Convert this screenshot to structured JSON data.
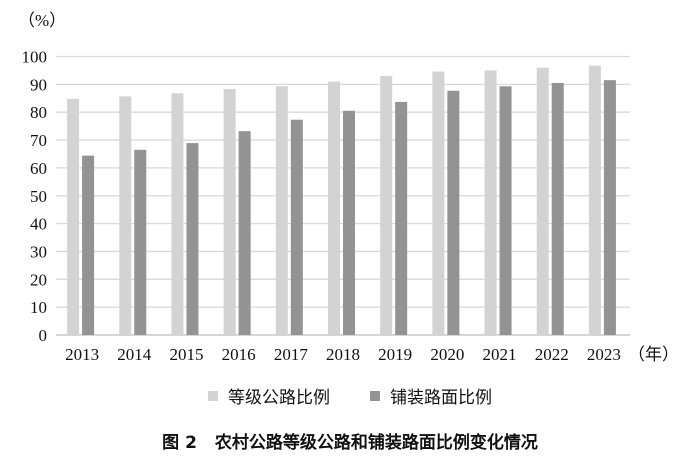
{
  "chart_data": {
    "type": "bar",
    "categories": [
      "2013",
      "2014",
      "2015",
      "2016",
      "2017",
      "2018",
      "2019",
      "2020",
      "2021",
      "2022",
      "2023"
    ],
    "series": [
      {
        "name": "等级公路比例",
        "color": "#d3d3d3",
        "values": [
          84.8,
          85.7,
          86.8,
          88.3,
          89.3,
          91.0,
          93.0,
          94.6,
          95.0,
          96.0,
          96.7
        ]
      },
      {
        "name": "铺装路面比例",
        "color": "#939393",
        "values": [
          64.4,
          66.5,
          68.9,
          73.2,
          77.3,
          80.5,
          83.7,
          87.7,
          89.3,
          90.5,
          91.5
        ]
      }
    ],
    "ylim": [
      0,
      100
    ],
    "yticks": [
      "0",
      "10",
      "20",
      "30",
      "40",
      "50",
      "60",
      "70",
      "80",
      "90",
      "100"
    ],
    "ylabel": "（%）",
    "xlabel": "（年）",
    "grid": true,
    "legend": "bottom"
  },
  "caption": {
    "number": "图 2",
    "title": "农村公路等级公路和铺装路面比例变化情况"
  }
}
